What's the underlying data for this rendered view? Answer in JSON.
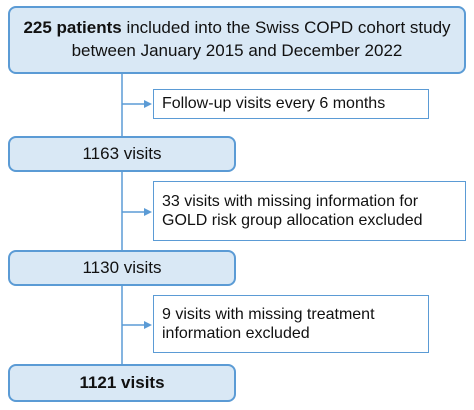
{
  "flowchart": {
    "start": {
      "bold": "225 patients",
      "text": " included into the Swiss COPD cohort study between January 2015 and December 2022"
    },
    "followup_note": "Follow-up visits every 6 months",
    "step1": "1163 visits",
    "exclusion1": "33 visits with missing information for GOLD risk group allocation excluded",
    "step2": "1130 visits",
    "exclusion2": "9 visits with missing treatment information excluded",
    "final": "1121 visits"
  },
  "colors": {
    "box_fill": "#d9e8f5",
    "border": "#5b9bd5"
  }
}
